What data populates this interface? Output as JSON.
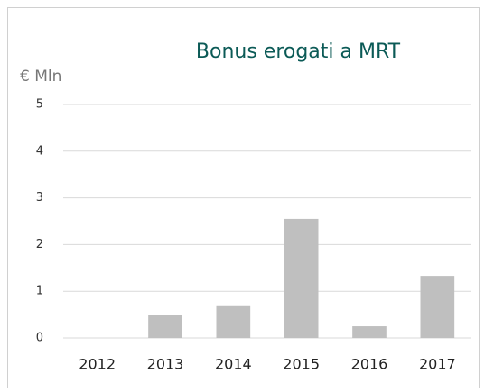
{
  "chart_data": {
    "type": "bar",
    "title": "Bonus erogati a MRT",
    "y_label": "€ Mln",
    "categories": [
      "2012",
      "2013",
      "2014",
      "2015",
      "2016",
      "2017"
    ],
    "values": [
      0,
      0.5,
      0.68,
      2.55,
      0.25,
      1.33
    ],
    "color": "#bfbfbf",
    "ylim": [
      0,
      5
    ],
    "yticks": [
      0,
      1,
      2,
      3,
      4,
      5
    ],
    "grid": true
  }
}
